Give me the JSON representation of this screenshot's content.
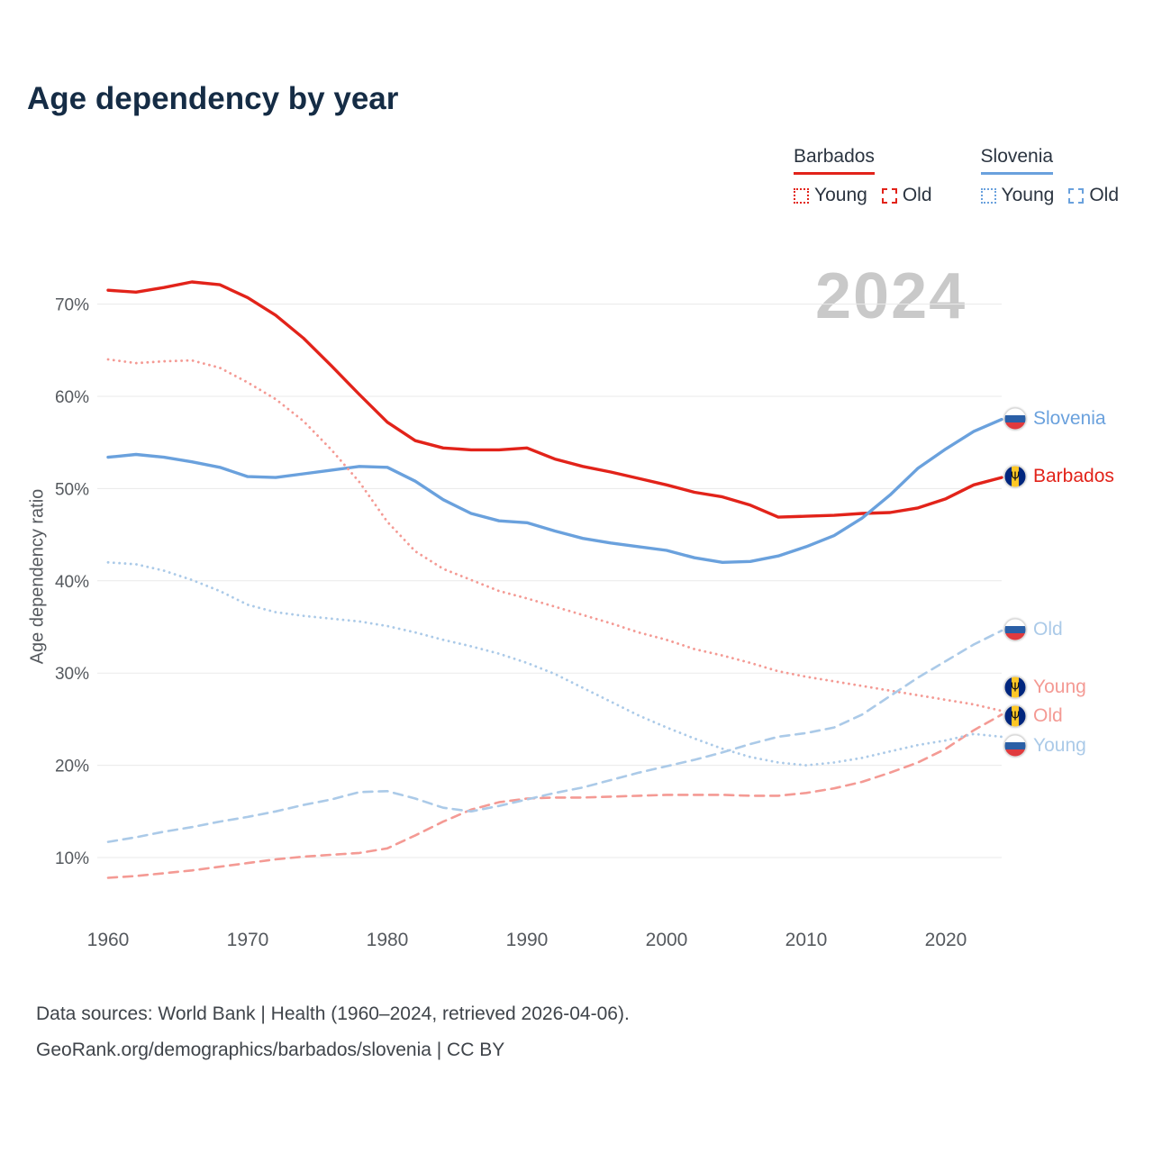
{
  "title": "Age dependency by year",
  "watermark": "2024",
  "y_axis_label": "Age dependency ratio",
  "colors": {
    "barbados": "#e2231a",
    "barbados_pale": "#f49a94",
    "slovenia": "#6aa1dd",
    "slovenia_pale": "#abcae8",
    "title_text": "#152c45",
    "axis_text": "#55595e",
    "gridline": "#eaeaea",
    "watermark": "#c9c9c9"
  },
  "legend": {
    "groups": [
      {
        "label": "Barbados",
        "color": "#e2231a",
        "items": [
          {
            "label": "Young",
            "line_style": "dotted"
          },
          {
            "label": "Old",
            "line_style": "dashed"
          }
        ]
      },
      {
        "label": "Slovenia",
        "color": "#6aa1dd",
        "items": [
          {
            "label": "Young",
            "line_style": "dotted"
          },
          {
            "label": "Old",
            "line_style": "dashed"
          }
        ]
      }
    ]
  },
  "chart_data": {
    "type": "line",
    "title": "Age dependency by year",
    "xlabel": "",
    "ylabel": "Age dependency ratio",
    "grid": true,
    "legend_position": "top-right",
    "xlim": [
      1959,
      2025
    ],
    "ylim": [
      7,
      74
    ],
    "x_ticks": [
      1960,
      1970,
      1980,
      1990,
      2000,
      2010,
      2020
    ],
    "y_grid_values": [
      10,
      20,
      30,
      40,
      50,
      60,
      70
    ],
    "y_tick_labels": [
      "10%",
      "20%",
      "30%",
      "40%",
      "50%",
      "60%",
      "70%"
    ],
    "x": [
      1960,
      1962,
      1964,
      1966,
      1968,
      1970,
      1972,
      1974,
      1976,
      1978,
      1980,
      1982,
      1984,
      1986,
      1988,
      1990,
      1992,
      1994,
      1996,
      1998,
      2000,
      2002,
      2004,
      2006,
      2008,
      2010,
      2012,
      2014,
      2016,
      2018,
      2020,
      2022,
      2024
    ],
    "series": [
      {
        "name": "Barbados",
        "country": "Barbados",
        "measure": "total",
        "line_style": "solid",
        "color": "#e2231a",
        "values": [
          71.5,
          71.3,
          71.8,
          72.4,
          72.1,
          70.7,
          68.8,
          66.3,
          63.3,
          60.2,
          57.2,
          55.2,
          54.4,
          54.2,
          54.2,
          54.4,
          53.2,
          52.4,
          51.8,
          51.1,
          50.4,
          49.6,
          49.1,
          48.2,
          46.9,
          47.0,
          47.1,
          47.3,
          47.4,
          47.9,
          48.9,
          50.4,
          51.2
        ]
      },
      {
        "name": "Slovenia",
        "country": "Slovenia",
        "measure": "total",
        "line_style": "solid",
        "color": "#6aa1dd",
        "values": [
          53.4,
          53.7,
          53.4,
          52.9,
          52.3,
          51.3,
          51.2,
          51.6,
          52.0,
          52.4,
          52.3,
          50.8,
          48.8,
          47.3,
          46.5,
          46.3,
          45.4,
          44.6,
          44.1,
          43.7,
          43.3,
          42.5,
          42.0,
          42.1,
          42.7,
          43.7,
          44.9,
          46.8,
          49.3,
          52.2,
          54.3,
          56.2,
          57.5
        ]
      },
      {
        "name": "Barbados Young",
        "country": "Barbados",
        "measure": "young",
        "line_style": "dotted",
        "color": "#f49a94",
        "values": [
          64.0,
          63.6,
          63.8,
          63.9,
          63.1,
          61.5,
          59.7,
          57.3,
          54.2,
          50.7,
          46.4,
          43.2,
          41.3,
          40.1,
          38.9,
          38.1,
          37.2,
          36.3,
          35.4,
          34.4,
          33.6,
          32.6,
          31.9,
          31.1,
          30.2,
          29.6,
          29.1,
          28.6,
          28.1,
          27.6,
          27.1,
          26.6,
          25.9
        ]
      },
      {
        "name": "Barbados Old",
        "country": "Barbados",
        "measure": "old",
        "line_style": "dashed",
        "color": "#f49a94",
        "values": [
          7.8,
          8.0,
          8.3,
          8.6,
          9.0,
          9.4,
          9.8,
          10.1,
          10.3,
          10.5,
          11.0,
          12.4,
          13.9,
          15.2,
          16.0,
          16.4,
          16.5,
          16.5,
          16.6,
          16.7,
          16.8,
          16.8,
          16.8,
          16.7,
          16.7,
          17.0,
          17.5,
          18.2,
          19.2,
          20.3,
          21.8,
          23.8,
          25.5
        ]
      },
      {
        "name": "Slovenia Young",
        "country": "Slovenia",
        "measure": "young",
        "line_style": "dotted",
        "color": "#abcae8",
        "values": [
          42.0,
          41.8,
          41.1,
          40.1,
          38.9,
          37.4,
          36.6,
          36.2,
          35.9,
          35.6,
          35.1,
          34.4,
          33.6,
          32.9,
          32.1,
          31.1,
          29.9,
          28.4,
          26.9,
          25.4,
          24.1,
          22.9,
          21.8,
          20.9,
          20.3,
          20.0,
          20.3,
          20.8,
          21.5,
          22.2,
          22.7,
          23.4,
          23.1
        ]
      },
      {
        "name": "Slovenia Old",
        "country": "Slovenia",
        "measure": "old",
        "line_style": "dashed",
        "color": "#abcae8",
        "values": [
          11.7,
          12.2,
          12.8,
          13.3,
          13.9,
          14.4,
          15.0,
          15.7,
          16.3,
          17.1,
          17.2,
          16.4,
          15.4,
          15.0,
          15.6,
          16.3,
          17.0,
          17.6,
          18.4,
          19.2,
          19.9,
          20.6,
          21.4,
          22.3,
          23.1,
          23.5,
          24.1,
          25.5,
          27.5,
          29.5,
          31.3,
          33.1,
          34.6
        ]
      }
    ],
    "end_labels": [
      {
        "text": "Slovenia",
        "series": "Slovenia",
        "flag": "slovenia",
        "color": "#6aa1dd",
        "y_value": 57.5
      },
      {
        "text": "Barbados",
        "series": "Barbados",
        "flag": "barbados",
        "color": "#e2231a",
        "y_value": 51.2
      },
      {
        "text": "Old",
        "series": "Slovenia Old",
        "flag": "slovenia",
        "color": "#abcae8",
        "y_value": 34.6
      },
      {
        "text": "Young",
        "series": "Barbados Young",
        "flag": "barbados",
        "color": "#f49a94",
        "y_value": 28.4
      },
      {
        "text": "Old",
        "series": "Barbados Old",
        "flag": "barbados",
        "color": "#f49a94",
        "y_value": 25.2
      },
      {
        "text": "Young",
        "series": "Slovenia Young",
        "flag": "slovenia",
        "color": "#abcae8",
        "y_value": 22.0
      }
    ]
  },
  "footer": {
    "line1": "Data sources: World Bank | Health (1960–2024, retrieved 2026-04-06).",
    "line2": "GeoRank.org/demographics/barbados/slovenia | CC BY"
  }
}
